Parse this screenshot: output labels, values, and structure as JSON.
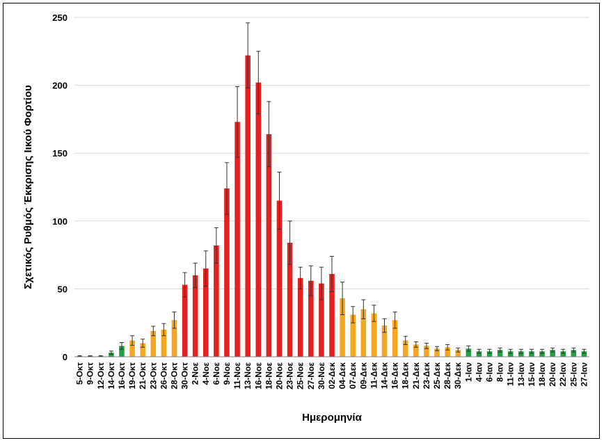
{
  "chart_data": {
    "type": "bar",
    "xlabel": "Ημερομηνία",
    "ylabel": "Σχετικός Ρυθμός Έκκρισης Ιικού Φορτίου",
    "ylim": [
      0,
      250
    ],
    "yticks": [
      0,
      50,
      100,
      150,
      200,
      250
    ],
    "grid": true,
    "colors": {
      "green": "#22A045",
      "orange": "#F5A623",
      "red": "#E52020",
      "error": "#333333"
    },
    "categories": [
      "5-Οκτ",
      "9-Οκτ",
      "12-Οκτ",
      "14-Οκτ",
      "16-Οκτ",
      "19-Οκτ",
      "21-Οκτ",
      "23-Οκτ",
      "26-Οκτ",
      "28-Οκτ",
      "30-Οκτ",
      "2-Νοε",
      "4-Νοε",
      "6-Νοε",
      "9-Νοε",
      "11-Νοε",
      "13-Νοε",
      "16-Νοε",
      "18-Νοε",
      "20-Νοε",
      "23-Νοε",
      "25-Νοε",
      "27-Νοε",
      "30-Νοε",
      "02-Δεκ",
      "04-Δεκ",
      "07-Δεκ",
      "09-Δεκ",
      "11-Δεκ",
      "14-Δεκ",
      "16-Δεκ",
      "18-Δεκ",
      "21-Δεκ",
      "23-Δεκ",
      "25-Δεκ",
      "28-Δεκ",
      "30-Δεκ",
      "1-Ιαν",
      "4-Ιαν",
      "6-Ιαν",
      "8-Ιαν",
      "11-Ιαν",
      "13-Ιαν",
      "15-Ιαν",
      "18-Ιαν",
      "20-Ιαν",
      "22-Ιαν",
      "25-Ιαν",
      "27-Ιαν"
    ],
    "values": [
      0.5,
      0.5,
      0.5,
      3,
      8,
      12,
      10,
      19,
      20,
      27,
      53,
      60,
      65,
      82,
      124,
      173,
      222,
      202,
      164,
      115,
      84,
      58,
      56,
      54,
      61,
      43,
      31,
      35,
      32,
      23,
      27,
      12,
      9,
      8,
      6,
      7,
      5,
      6,
      4,
      4,
      5,
      4,
      4,
      4,
      4,
      5,
      4,
      5,
      4
    ],
    "errors": [
      0.3,
      0.3,
      0.3,
      1.2,
      2.5,
      3.5,
      3,
      3.5,
      4.5,
      6,
      9,
      9,
      13,
      13,
      19,
      26,
      24,
      23,
      24,
      21,
      16,
      8,
      11,
      12,
      13,
      12,
      6,
      7,
      6,
      5,
      6,
      3,
      2,
      2,
      1.5,
      2,
      1.5,
      2,
      1.5,
      1.5,
      1.5,
      1.5,
      1.5,
      1.5,
      1.5,
      1.5,
      1.5,
      1.5,
      1.5
    ],
    "bar_colors": [
      "green",
      "green",
      "green",
      "green",
      "green",
      "orange",
      "orange",
      "orange",
      "orange",
      "orange",
      "red",
      "red",
      "red",
      "red",
      "red",
      "red",
      "red",
      "red",
      "red",
      "red",
      "red",
      "red",
      "red",
      "red",
      "red",
      "orange",
      "orange",
      "orange",
      "orange",
      "orange",
      "orange",
      "orange",
      "orange",
      "orange",
      "orange",
      "orange",
      "orange",
      "green",
      "green",
      "green",
      "green",
      "green",
      "green",
      "green",
      "green",
      "green",
      "green",
      "green",
      "green"
    ]
  }
}
